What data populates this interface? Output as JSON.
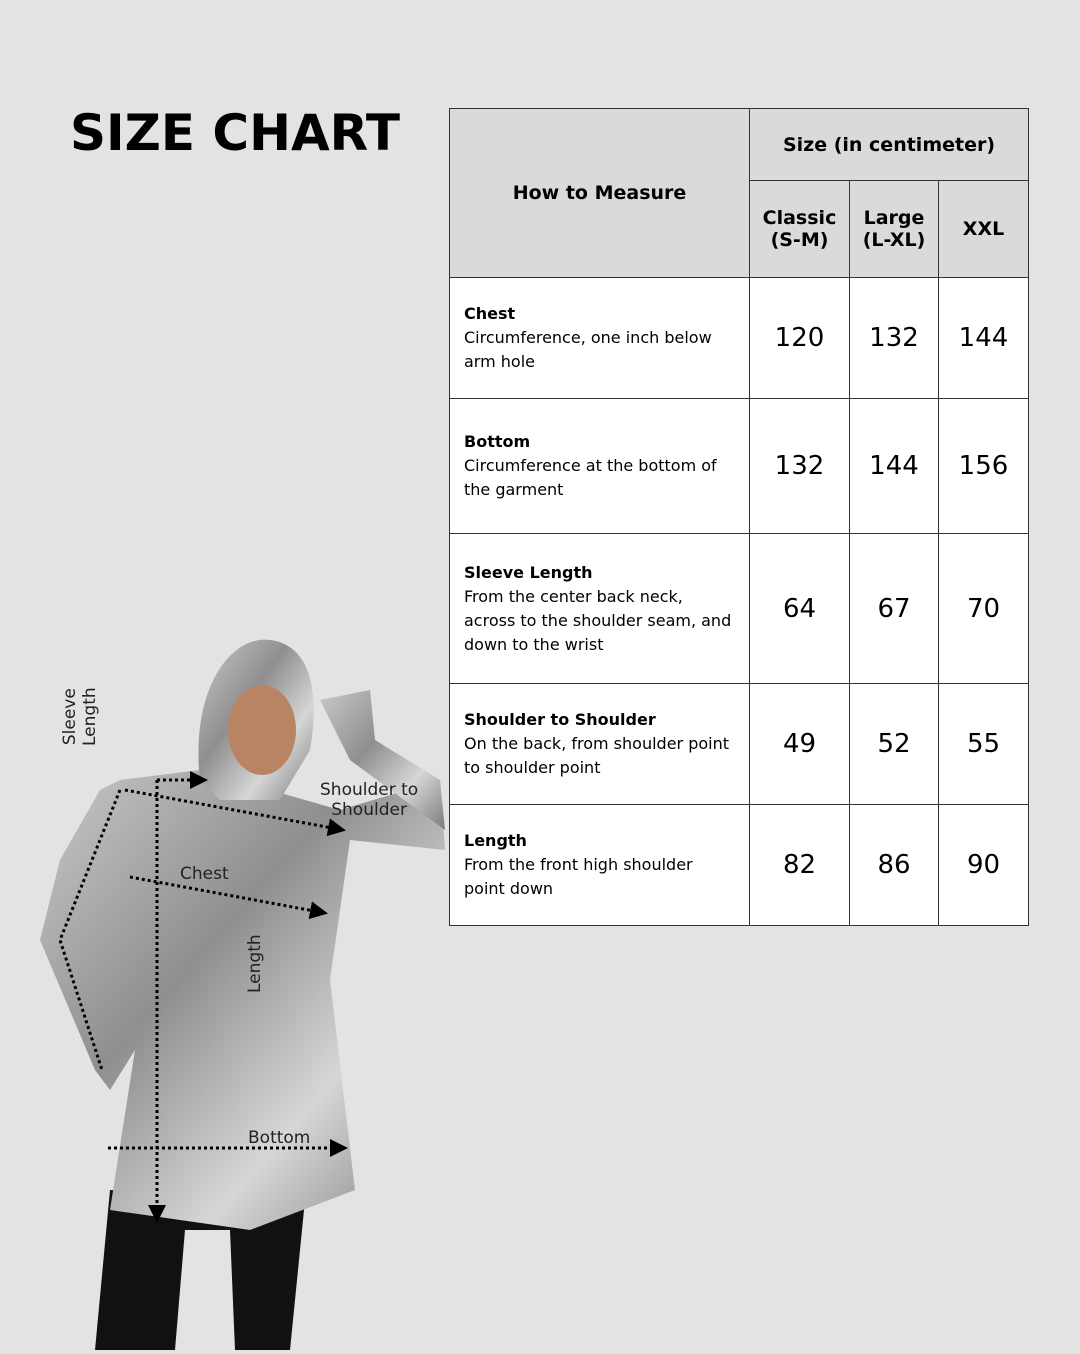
{
  "title": "SIZE CHART",
  "table": {
    "how_to_measure": "How to Measure",
    "size_unit": "Size (in centimeter)",
    "sizes": [
      {
        "name": "Classic",
        "range": "(S-M)"
      },
      {
        "name": "Large",
        "range": "(L-XL)"
      },
      {
        "name": "XXL",
        "range": ""
      }
    ],
    "rows": [
      {
        "name": "Chest",
        "desc": "Circumference, one inch below arm hole",
        "values": [
          "120",
          "132",
          "144"
        ]
      },
      {
        "name": "Bottom",
        "desc": "Circumference at the bottom of the garment",
        "values": [
          "132",
          "144",
          "156"
        ]
      },
      {
        "name": "Sleeve Length",
        "desc": "From the center back neck, across to the shoulder seam, and down to the wrist",
        "values": [
          "64",
          "67",
          "70"
        ]
      },
      {
        "name": "Shoulder to Shoulder",
        "desc": "On the back, from shoulder point to shoulder point",
        "values": [
          "49",
          "52",
          "55"
        ]
      },
      {
        "name": "Length",
        "desc": "From the front high shoulder point down",
        "values": [
          "82",
          "86",
          "90"
        ]
      }
    ]
  },
  "figure": {
    "labels": {
      "sleeve_1": "Sleeve",
      "sleeve_2": "Length",
      "shoulder_1": "Shoulder to",
      "shoulder_2": "Shoulder",
      "chest": "Chest",
      "length": "Length",
      "bottom": "Bottom"
    }
  }
}
